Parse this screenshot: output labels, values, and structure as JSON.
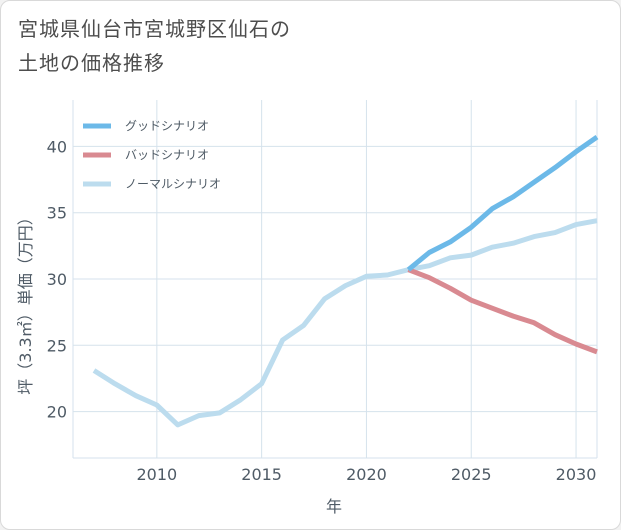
{
  "title_line1": "宮城県仙台市宮城野区仙石の",
  "title_line2": "土地の価格推移",
  "chart_data": {
    "type": "line",
    "xlabel": "年",
    "ylabel": "坪（3.3㎡）単価（万円）",
    "xlim": [
      2006,
      2031
    ],
    "ylim": [
      16.5,
      43.5
    ],
    "xticks": [
      2010,
      2015,
      2020,
      2025,
      2030
    ],
    "yticks": [
      20,
      25,
      30,
      35,
      40
    ],
    "grid": true,
    "legend_position": "top-left",
    "series": [
      {
        "name": "グッドシナリオ",
        "color": "#6cb9e8",
        "points": [
          [
            2022,
            30.7
          ],
          [
            2023,
            32.0
          ],
          [
            2024,
            32.8
          ],
          [
            2025,
            33.9
          ],
          [
            2026,
            35.3
          ],
          [
            2027,
            36.2
          ],
          [
            2028,
            37.3
          ],
          [
            2029,
            38.4
          ],
          [
            2030,
            39.6
          ],
          [
            2031,
            40.7
          ]
        ]
      },
      {
        "name": "バッドシナリオ",
        "color": "#d98a91",
        "points": [
          [
            2022,
            30.7
          ],
          [
            2023,
            30.1
          ],
          [
            2024,
            29.3
          ],
          [
            2025,
            28.4
          ],
          [
            2026,
            27.8
          ],
          [
            2027,
            27.2
          ],
          [
            2028,
            26.7
          ],
          [
            2029,
            25.8
          ],
          [
            2030,
            25.1
          ],
          [
            2031,
            24.5
          ]
        ]
      },
      {
        "name": "ノーマルシナリオ",
        "color": "#bcdcee",
        "points": [
          [
            2007,
            23.1
          ],
          [
            2008,
            22.1
          ],
          [
            2009,
            21.2
          ],
          [
            2010,
            20.5
          ],
          [
            2011,
            19.0
          ],
          [
            2012,
            19.7
          ],
          [
            2013,
            19.9
          ],
          [
            2014,
            20.9
          ],
          [
            2015,
            22.1
          ],
          [
            2016,
            25.4
          ],
          [
            2017,
            26.5
          ],
          [
            2018,
            28.5
          ],
          [
            2019,
            29.5
          ],
          [
            2020,
            30.2
          ],
          [
            2021,
            30.3
          ],
          [
            2022,
            30.7
          ],
          [
            2023,
            31.0
          ],
          [
            2024,
            31.6
          ],
          [
            2025,
            31.8
          ],
          [
            2026,
            32.4
          ],
          [
            2027,
            32.7
          ],
          [
            2028,
            33.2
          ],
          [
            2029,
            33.5
          ],
          [
            2030,
            34.1
          ],
          [
            2031,
            34.4
          ]
        ]
      }
    ]
  }
}
